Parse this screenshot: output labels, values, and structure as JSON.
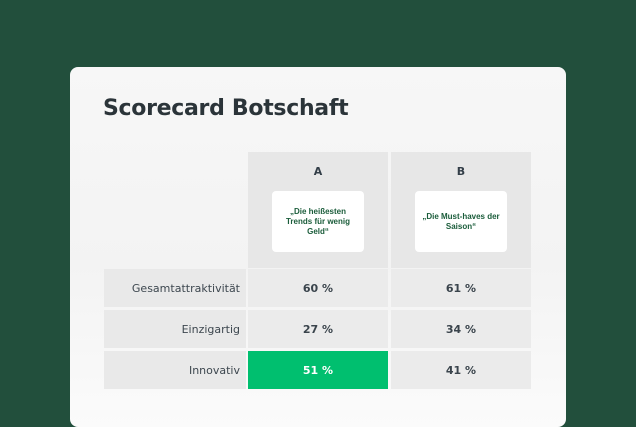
{
  "title": "Scorecard Botschaft",
  "columns": [
    {
      "letter": "A",
      "message": "„Die heißesten Trends für wenig Geld“"
    },
    {
      "letter": "B",
      "message": "„Die Must-haves der Saison“"
    }
  ],
  "rows": [
    {
      "label": "Gesamtattraktivität",
      "values": [
        "60 %",
        "61 %"
      ]
    },
    {
      "label": "Einzigartig",
      "values": [
        "27 %",
        "34 %"
      ]
    },
    {
      "label": "Innovativ",
      "values": [
        "51 %",
        "41 %"
      ]
    }
  ],
  "colors": {
    "background": "#224f3c",
    "highlight": "#00bf6f",
    "message_text": "#1a5c3a"
  }
}
